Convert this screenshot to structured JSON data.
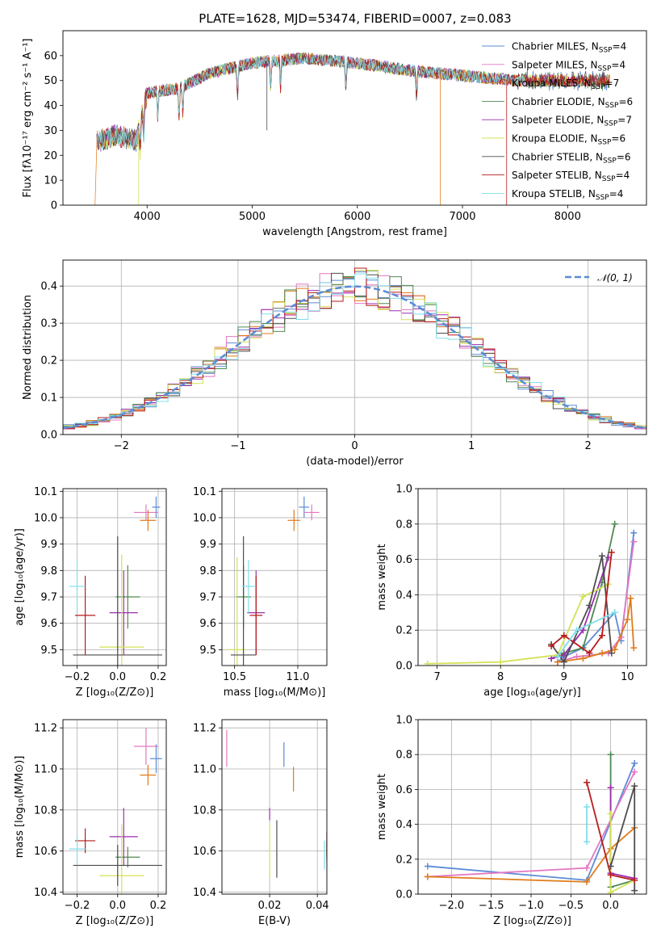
{
  "colors": {
    "chabrier_miles": "#5b8bd6",
    "salpeter_miles": "#e377c2",
    "kroupa_miles": "#e07b1a",
    "chabrier_elodie": "#4e8a52",
    "salpeter_elodie": "#9b2fae",
    "kroupa_elodie": "#d4e157",
    "chabrier_stelib": "#4d4d4d",
    "salpeter_stelib": "#b71c1c",
    "kroupa_stelib": "#80deea",
    "normal_line": "#5b8bd6"
  },
  "chart_data": [
    {
      "id": "spectrum",
      "type": "line",
      "title": "PLATE=1628, MJD=53474, FIBERID=0007, z=0.083",
      "xlabel": "wavelength [Angstrom, rest frame]",
      "ylabel": "Flux [fλ10⁻¹⁷ erg cm⁻² s⁻¹ A⁻¹]",
      "xlim": [
        3200,
        8750
      ],
      "ylim": [
        0,
        70
      ],
      "xticks": [
        "4000",
        "5000",
        "6000",
        "7000",
        "8000"
      ],
      "yticks": [
        "0",
        "10",
        "20",
        "30",
        "40",
        "50",
        "60"
      ],
      "grid": false,
      "legend_position": "top-right",
      "continuum": [
        [
          3500,
          25
        ],
        [
          3700,
          28
        ],
        [
          3900,
          26
        ],
        [
          4000,
          45
        ],
        [
          4300,
          47
        ],
        [
          4600,
          53
        ],
        [
          5000,
          57
        ],
        [
          5500,
          59
        ],
        [
          6000,
          57
        ],
        [
          6500,
          54
        ],
        [
          7000,
          52
        ],
        [
          7500,
          50
        ]
      ],
      "legend": [
        {
          "label": "Chabrier MILES, N",
          "sub": "SSP",
          "tail": "=4",
          "color_key": "chabrier_miles"
        },
        {
          "label": "Salpeter MILES, N",
          "sub": "SSP",
          "tail": "=4",
          "color_key": "salpeter_miles"
        },
        {
          "label": "Kroupa MILES, N",
          "sub": "SSP",
          "tail": "=7",
          "color_key": "kroupa_miles"
        },
        {
          "label": "Chabrier ELODIE, N",
          "sub": "SSP",
          "tail": "=6",
          "color_key": "chabrier_elodie"
        },
        {
          "label": "Salpeter ELODIE, N",
          "sub": "SSP",
          "tail": "=7",
          "color_key": "salpeter_elodie"
        },
        {
          "label": "Kroupa ELODIE, N",
          "sub": "SSP",
          "tail": "=6",
          "color_key": "kroupa_elodie"
        },
        {
          "label": "Chabrier STELIB, N",
          "sub": "SSP",
          "tail": "=6",
          "color_key": "chabrier_stelib"
        },
        {
          "label": "Salpeter STELIB, N",
          "sub": "SSP",
          "tail": "=4",
          "color_key": "salpeter_stelib"
        },
        {
          "label": "Kroupa STELIB, N",
          "sub": "SSP",
          "tail": "=4",
          "color_key": "kroupa_stelib"
        }
      ]
    },
    {
      "id": "residuals",
      "type": "line",
      "xlabel": "(data-model)/error",
      "ylabel": "Normed distribution",
      "xlim": [
        -2.5,
        2.5
      ],
      "ylim": [
        0,
        0.47
      ],
      "xticks": [
        -2,
        -1,
        0,
        1,
        2
      ],
      "yticks": [
        0.0,
        0.1,
        0.2,
        0.3,
        0.4
      ],
      "grid": true,
      "legend_position": "top-right",
      "legend_label": "𝒩(0, 1)",
      "bin_width": 0.1,
      "mean": 0,
      "sigma": 1
    },
    {
      "id": "age_vs_z",
      "type": "scatter",
      "xlabel": "Z [log₁₀(Z/Z⊙)]",
      "ylabel": "age  [log₁₀(age/yr)]",
      "xlim": [
        -0.27,
        0.24
      ],
      "ylim": [
        9.44,
        10.11
      ],
      "xticks": [
        -0.2,
        0.0,
        0.2
      ],
      "yticks": [
        9.5,
        9.6,
        9.7,
        9.8,
        9.9,
        10.0,
        10.1
      ],
      "grid": true,
      "points": [
        {
          "key": "chabrier_miles",
          "x": 0.19,
          "y": 10.04,
          "xerr": 0.02,
          "yerr": 0.04
        },
        {
          "key": "salpeter_miles",
          "x": 0.14,
          "y": 10.02,
          "xerr": 0.06,
          "yerr": 0.03
        },
        {
          "key": "kroupa_miles",
          "x": 0.15,
          "y": 9.99,
          "xerr": 0.04,
          "yerr": 0.04
        },
        {
          "key": "chabrier_elodie",
          "x": 0.05,
          "y": 9.7,
          "xerr": 0.06,
          "yerr": 0.12
        },
        {
          "key": "salpeter_elodie",
          "x": 0.03,
          "y": 9.64,
          "xerr": 0.07,
          "yerr": 0.16
        },
        {
          "key": "kroupa_elodie",
          "x": 0.02,
          "y": 9.51,
          "xerr": 0.11,
          "yerr": 0.35
        },
        {
          "key": "chabrier_stelib",
          "x": 0.0,
          "y": 9.48,
          "xerr": 0.22,
          "yerr": 0.45
        },
        {
          "key": "salpeter_stelib",
          "x": -0.16,
          "y": 9.63,
          "xerr": 0.05,
          "yerr": 0.15
        },
        {
          "key": "kroupa_stelib",
          "x": -0.2,
          "y": 9.74,
          "xerr": 0.04,
          "yerr": 0.1
        }
      ]
    },
    {
      "id": "age_vs_mass",
      "type": "scatter",
      "xlabel": "mass [log₁₀(M/M⊙)]",
      "ylabel": "",
      "xlim": [
        10.4,
        11.23
      ],
      "ylim": [
        9.44,
        10.11
      ],
      "xticks": [
        10.5,
        11.0
      ],
      "yticks": [
        9.5,
        9.6,
        9.7,
        9.8,
        9.9,
        10.0,
        10.1
      ],
      "grid": true,
      "points": [
        {
          "key": "chabrier_miles",
          "x": 11.05,
          "y": 10.04,
          "xerr": 0.04,
          "yerr": 0.04
        },
        {
          "key": "salpeter_miles",
          "x": 11.11,
          "y": 10.02,
          "xerr": 0.06,
          "yerr": 0.03
        },
        {
          "key": "kroupa_miles",
          "x": 10.97,
          "y": 9.99,
          "xerr": 0.05,
          "yerr": 0.04
        },
        {
          "key": "chabrier_elodie",
          "x": 10.57,
          "y": 9.7,
          "xerr": 0.06,
          "yerr": 0.12
        },
        {
          "key": "salpeter_elodie",
          "x": 10.67,
          "y": 9.64,
          "xerr": 0.07,
          "yerr": 0.16
        },
        {
          "key": "kroupa_elodie",
          "x": 10.52,
          "y": 9.5,
          "xerr": 0.07,
          "yerr": 0.35
        },
        {
          "key": "chabrier_stelib",
          "x": 10.57,
          "y": 9.48,
          "xerr": 0.1,
          "yerr": 0.45
        },
        {
          "key": "salpeter_stelib",
          "x": 10.67,
          "y": 9.63,
          "xerr": 0.05,
          "yerr": 0.15
        },
        {
          "key": "kroupa_stelib",
          "x": 10.61,
          "y": 9.74,
          "xerr": 0.05,
          "yerr": 0.1
        }
      ]
    },
    {
      "id": "weight_vs_age",
      "type": "line",
      "xlabel": "age  [log₁₀(age/yr)]",
      "ylabel": "mass weight",
      "xlim": [
        6.7,
        10.3
      ],
      "ylim": [
        0,
        1.0
      ],
      "xticks": [
        7,
        8,
        9,
        10
      ],
      "yticks": [
        0.0,
        0.2,
        0.4,
        0.6,
        0.8,
        1.0
      ],
      "grid": true,
      "series": [
        {
          "key": "chabrier_miles",
          "x": [
            8.9,
            9.0,
            9.3,
            9.8,
            9.9,
            10.1
          ],
          "y": [
            0.02,
            0.05,
            0.1,
            0.3,
            0.14,
            0.75
          ]
        },
        {
          "key": "salpeter_miles",
          "x": [
            8.9,
            9.2,
            9.7,
            9.9,
            10.1
          ],
          "y": [
            0.02,
            0.05,
            0.07,
            0.16,
            0.7
          ]
        },
        {
          "key": "kroupa_miles",
          "x": [
            8.9,
            9.3,
            9.6,
            9.8,
            10.0,
            10.05,
            10.1
          ],
          "y": [
            0.02,
            0.04,
            0.07,
            0.09,
            0.26,
            0.38,
            0.1
          ]
        },
        {
          "key": "chabrier_elodie",
          "x": [
            8.8,
            9.0,
            9.3,
            9.6,
            9.8
          ],
          "y": [
            0.04,
            0.07,
            0.1,
            0.47,
            0.8
          ]
        },
        {
          "key": "salpeter_elodie",
          "x": [
            8.8,
            9.0,
            9.3,
            9.7
          ],
          "y": [
            0.04,
            0.06,
            0.2,
            0.61
          ]
        },
        {
          "key": "kroupa_elodie",
          "x": [
            6.85,
            8.0,
            8.9,
            9.3,
            9.7
          ],
          "y": [
            0.01,
            0.02,
            0.06,
            0.39,
            0.46
          ]
        },
        {
          "key": "chabrier_stelib",
          "x": [
            8.8,
            9.0,
            9.4,
            9.6,
            9.75
          ],
          "y": [
            0.12,
            0.02,
            0.34,
            0.62,
            0.07
          ]
        },
        {
          "key": "salpeter_stelib",
          "x": [
            8.8,
            9.0,
            9.4,
            9.6,
            9.75
          ],
          "y": [
            0.11,
            0.17,
            0.07,
            0.17,
            0.64
          ]
        },
        {
          "key": "kroupa_stelib",
          "x": [
            8.9,
            9.2,
            9.8
          ],
          "y": [
            0.05,
            0.2,
            0.3
          ]
        }
      ]
    },
    {
      "id": "mass_vs_z",
      "type": "scatter",
      "xlabel": "Z [log₁₀(Z/Z⊙)]",
      "ylabel": "mass [log₁₀(M/M⊙)]",
      "xlim": [
        -0.27,
        0.24
      ],
      "ylim": [
        10.39,
        11.24
      ],
      "xticks": [
        -0.2,
        0.0,
        0.2
      ],
      "yticks": [
        10.4,
        10.6,
        10.8,
        11.0,
        11.2
      ],
      "grid": true,
      "points": [
        {
          "key": "chabrier_miles",
          "x": 0.19,
          "y": 11.05,
          "xerr": 0.03,
          "yerr": 0.07
        },
        {
          "key": "salpeter_miles",
          "x": 0.14,
          "y": 11.11,
          "xerr": 0.06,
          "yerr": 0.09
        },
        {
          "key": "kroupa_miles",
          "x": 0.15,
          "y": 10.97,
          "xerr": 0.04,
          "yerr": 0.05
        },
        {
          "key": "chabrier_elodie",
          "x": 0.05,
          "y": 10.57,
          "xerr": 0.06,
          "yerr": 0.05
        },
        {
          "key": "salpeter_elodie",
          "x": 0.03,
          "y": 10.67,
          "xerr": 0.07,
          "yerr": 0.14
        },
        {
          "key": "kroupa_elodie",
          "x": 0.02,
          "y": 10.48,
          "xerr": 0.11,
          "yerr": 0.25
        },
        {
          "key": "chabrier_stelib",
          "x": 0.0,
          "y": 10.53,
          "xerr": 0.22,
          "yerr": 0.1
        },
        {
          "key": "salpeter_stelib",
          "x": -0.16,
          "y": 10.65,
          "xerr": 0.05,
          "yerr": 0.06
        },
        {
          "key": "kroupa_stelib",
          "x": -0.2,
          "y": 10.61,
          "xerr": 0.04,
          "yerr": 0.07
        }
      ]
    },
    {
      "id": "mass_vs_ebv",
      "type": "scatter",
      "xlabel": "E(B-V)",
      "ylabel": "",
      "xlim": [
        0.0,
        0.044
      ],
      "ylim": [
        10.39,
        11.24
      ],
      "xticks": [
        0.02,
        0.04
      ],
      "yticks": [
        10.4,
        10.6,
        10.8,
        11.0,
        11.2
      ],
      "grid": true,
      "points": [
        {
          "key": "chabrier_miles",
          "x": 0.026,
          "y": 11.07,
          "xerr": 0.0,
          "yerr": 0.06
        },
        {
          "key": "salpeter_miles",
          "x": 0.002,
          "y": 11.1,
          "xerr": 0.0,
          "yerr": 0.09
        },
        {
          "key": "kroupa_miles",
          "x": 0.03,
          "y": 10.95,
          "xerr": 0.0,
          "yerr": 0.06
        },
        {
          "key": "chabrier_elodie",
          "x": 0.044,
          "y": 10.6,
          "xerr": 0.0,
          "yerr": 0.05
        },
        {
          "key": "salpeter_elodie",
          "x": 0.02,
          "y": 10.78,
          "xerr": 0.0,
          "yerr": 0.03
        },
        {
          "key": "kroupa_elodie",
          "x": 0.02,
          "y": 10.6,
          "xerr": 0.0,
          "yerr": 0.13
        },
        {
          "key": "chabrier_stelib",
          "x": 0.023,
          "y": 10.61,
          "xerr": 0.0,
          "yerr": 0.14
        },
        {
          "key": "salpeter_stelib",
          "x": 0.044,
          "y": 10.63,
          "xerr": 0.0,
          "yerr": 0.06
        },
        {
          "key": "kroupa_stelib",
          "x": 0.043,
          "y": 10.58,
          "xerr": 0.0,
          "yerr": 0.07
        }
      ]
    },
    {
      "id": "weight_vs_z",
      "type": "line",
      "xlabel": "Z [log₁₀(Z/Z⊙)]",
      "ylabel": "mass weight",
      "xlim": [
        -2.42,
        0.45
      ],
      "ylim": [
        0,
        1.0
      ],
      "xticks": [
        -2.0,
        -1.5,
        -1.0,
        -0.5,
        0.0
      ],
      "yticks": [
        0.0,
        0.2,
        0.4,
        0.6,
        0.8,
        1.0
      ],
      "grid": true,
      "series": [
        {
          "key": "chabrier_miles",
          "x": [
            -2.3,
            -0.3,
            0.3
          ],
          "y": [
            0.16,
            0.08,
            0.75
          ]
        },
        {
          "key": "salpeter_miles",
          "x": [
            -2.3,
            -0.3,
            0.3
          ],
          "y": [
            0.1,
            0.15,
            0.7
          ]
        },
        {
          "key": "kroupa_miles",
          "x": [
            -2.3,
            -0.3,
            0.0,
            0.3
          ],
          "y": [
            0.1,
            0.07,
            0.26,
            0.38
          ]
        },
        {
          "key": "chabrier_elodie",
          "x": [
            0.0,
            0.0,
            0.3
          ],
          "y": [
            0.8,
            0.04,
            0.08
          ]
        },
        {
          "key": "salpeter_elodie",
          "x": [
            0.0,
            0.0,
            0.3
          ],
          "y": [
            0.61,
            0.12,
            0.09
          ]
        },
        {
          "key": "kroupa_elodie",
          "x": [
            0.0,
            0.0,
            0.3
          ],
          "y": [
            0.46,
            0.01,
            0.08
          ]
        },
        {
          "key": "chabrier_stelib",
          "x": [
            0.0,
            0.3,
            0.3
          ],
          "y": [
            0.16,
            0.62,
            0.02
          ]
        },
        {
          "key": "salpeter_stelib",
          "x": [
            -0.3,
            0.0,
            0.3
          ],
          "y": [
            0.64,
            0.11,
            0.08
          ]
        },
        {
          "key": "kroupa_stelib",
          "x": [
            -0.3,
            -0.3
          ],
          "y": [
            0.3,
            0.5
          ]
        }
      ]
    }
  ]
}
